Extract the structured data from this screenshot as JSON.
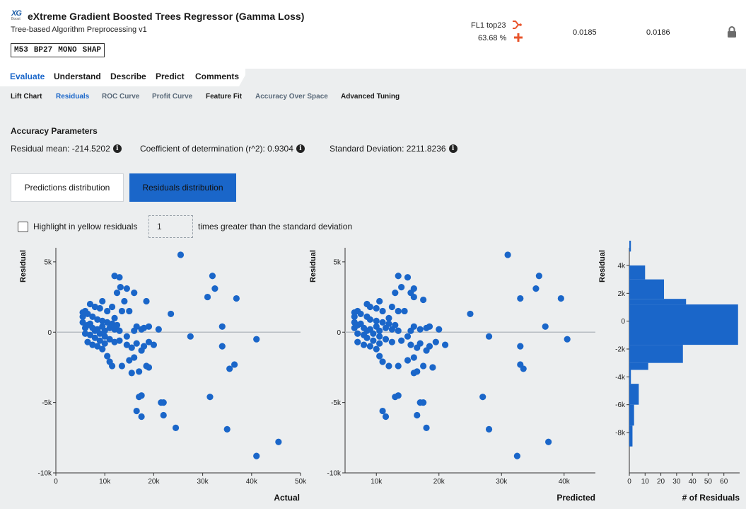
{
  "header": {
    "logo_text": "XG",
    "logo_sub": "Boost",
    "title": "eXtreme Gradient Boosted Trees Regressor (Gamma Loss)",
    "subtitle": "Tree-based Algorithm Preprocessing v1",
    "tags": [
      "M53",
      "BP27",
      "MONO",
      "SHAP"
    ],
    "feature_list": "FL1 top23",
    "sample_pct": "63.68 %",
    "metric_1": "0.0185",
    "metric_2": "0.0186",
    "icons": [
      "branch-icon",
      "plus-icon",
      "lock-icon"
    ],
    "accent_color": "#e8542b"
  },
  "tabs": [
    "Evaluate",
    "Understand",
    "Describe",
    "Predict",
    "Comments"
  ],
  "active_tab": "Evaluate",
  "subtabs": [
    "Lift Chart",
    "Residuals",
    "ROC Curve",
    "Profit Curve",
    "Feature Fit",
    "Accuracy Over Space",
    "Advanced Tuning"
  ],
  "active_subtab": "Residuals",
  "accuracy": {
    "title": "Accuracy Parameters",
    "residual_mean": "Residual mean: -214.5202",
    "r2": "Coefficient of determination (r^2): 0.9304",
    "std": "Standard Deviation: 2211.8236"
  },
  "buttons": {
    "predictions": "Predictions distribution",
    "residuals": "Residuals distribution"
  },
  "highlight": {
    "label": "Highlight in yellow residuals",
    "value": "1",
    "suffix": "times greater than the standard deviation",
    "checked": false
  },
  "colors": {
    "primary": "#1a66c9",
    "point": "#1a66c9"
  },
  "chart_data": [
    {
      "type": "scatter",
      "xlabel": "Actual",
      "ylabel": "Residual",
      "xlim": [
        0,
        50000
      ],
      "ylim": [
        -10000,
        6000
      ],
      "x_ticks": [
        "0",
        "10k",
        "20k",
        "30k",
        "40k",
        "50k"
      ],
      "y_ticks": [
        "5k",
        "0",
        "-5k",
        "-10k"
      ],
      "points": [
        [
          25500,
          5500
        ],
        [
          12000,
          4000
        ],
        [
          13000,
          3900
        ],
        [
          32000,
          4000
        ],
        [
          13200,
          3200
        ],
        [
          14500,
          3100
        ],
        [
          31000,
          2500
        ],
        [
          32500,
          3100
        ],
        [
          36900,
          2400
        ],
        [
          18500,
          2200
        ],
        [
          12500,
          2800
        ],
        [
          14000,
          2200
        ],
        [
          7000,
          2000
        ],
        [
          9000,
          1700
        ],
        [
          10500,
          1500
        ],
        [
          11500,
          1800
        ],
        [
          15000,
          1500
        ],
        [
          8000,
          1800
        ],
        [
          9500,
          2200
        ],
        [
          6000,
          1500
        ],
        [
          5500,
          1100
        ],
        [
          6500,
          1300
        ],
        [
          7500,
          1100
        ],
        [
          8500,
          900
        ],
        [
          9500,
          800
        ],
        [
          10500,
          700
        ],
        [
          11500,
          600
        ],
        [
          12500,
          500
        ],
        [
          5500,
          700
        ],
        [
          6500,
          500
        ],
        [
          7500,
          300
        ],
        [
          8500,
          200
        ],
        [
          9500,
          400
        ],
        [
          10000,
          100
        ],
        [
          11000,
          300
        ],
        [
          12000,
          200
        ],
        [
          13000,
          100
        ],
        [
          16000,
          100
        ],
        [
          16500,
          400
        ],
        [
          17500,
          200
        ],
        [
          18000,
          300
        ],
        [
          19000,
          400
        ],
        [
          21000,
          200
        ],
        [
          23500,
          1300
        ],
        [
          34000,
          400
        ],
        [
          6000,
          -100
        ],
        [
          7000,
          -200
        ],
        [
          8000,
          -400
        ],
        [
          9000,
          -100
        ],
        [
          10000,
          -300
        ],
        [
          11000,
          -500
        ],
        [
          12000,
          -700
        ],
        [
          13000,
          -600
        ],
        [
          14500,
          -900
        ],
        [
          15500,
          -1100
        ],
        [
          16500,
          -800
        ],
        [
          17500,
          -1300
        ],
        [
          18000,
          -1000
        ],
        [
          19000,
          -700
        ],
        [
          6500,
          -700
        ],
        [
          7500,
          -900
        ],
        [
          8500,
          -1000
        ],
        [
          9500,
          -1200
        ],
        [
          10500,
          -1700
        ],
        [
          11000,
          -2100
        ],
        [
          11500,
          -2400
        ],
        [
          13500,
          -2400
        ],
        [
          15000,
          -2000
        ],
        [
          16000,
          -1800
        ],
        [
          17000,
          -2800
        ],
        [
          18500,
          -2400
        ],
        [
          19000,
          -2500
        ],
        [
          15500,
          -2900
        ],
        [
          27500,
          -300
        ],
        [
          34000,
          -1000
        ],
        [
          36500,
          -2300
        ],
        [
          35500,
          -2600
        ],
        [
          41000,
          -500
        ],
        [
          17500,
          -4500
        ],
        [
          17000,
          -4600
        ],
        [
          21500,
          -5000
        ],
        [
          22000,
          -5000
        ],
        [
          16500,
          -5600
        ],
        [
          17500,
          -6000
        ],
        [
          22000,
          -5900
        ],
        [
          24500,
          -6800
        ],
        [
          31500,
          -4600
        ],
        [
          35000,
          -6900
        ],
        [
          41000,
          -8800
        ],
        [
          45500,
          -7800
        ],
        [
          14500,
          -300
        ],
        [
          12000,
          1000
        ],
        [
          13500,
          1500
        ],
        [
          16000,
          2800
        ],
        [
          5500,
          1400
        ],
        [
          6000,
          300
        ],
        [
          7000,
          600
        ],
        [
          8000,
          100
        ],
        [
          9000,
          -600
        ],
        [
          10000,
          -800
        ],
        [
          20000,
          -900
        ]
      ]
    },
    {
      "type": "scatter",
      "xlabel": "Predicted",
      "ylabel": "Residual",
      "xlim": [
        5000,
        45000
      ],
      "ylim": [
        -10000,
        6000
      ],
      "x_ticks": [
        "10k",
        "20k",
        "30k",
        "40k"
      ],
      "y_ticks": [
        "5k",
        "0",
        "-5k",
        "-10k"
      ],
      "points": [
        [
          31000,
          5500
        ],
        [
          13500,
          4000
        ],
        [
          15000,
          3900
        ],
        [
          36000,
          4000
        ],
        [
          14000,
          3200
        ],
        [
          16000,
          3100
        ],
        [
          33000,
          2400
        ],
        [
          35500,
          3100
        ],
        [
          39500,
          2400
        ],
        [
          17500,
          2300
        ],
        [
          13000,
          2800
        ],
        [
          16000,
          2500
        ],
        [
          8500,
          2000
        ],
        [
          10000,
          1700
        ],
        [
          11000,
          1500
        ],
        [
          12500,
          1800
        ],
        [
          14500,
          1500
        ],
        [
          9000,
          1800
        ],
        [
          10500,
          2200
        ],
        [
          7000,
          1500
        ],
        [
          6500,
          1100
        ],
        [
          7500,
          1300
        ],
        [
          8500,
          1100
        ],
        [
          9000,
          900
        ],
        [
          10000,
          800
        ],
        [
          11000,
          700
        ],
        [
          12000,
          600
        ],
        [
          13000,
          500
        ],
        [
          6500,
          700
        ],
        [
          7000,
          500
        ],
        [
          8000,
          300
        ],
        [
          9000,
          200
        ],
        [
          10000,
          400
        ],
        [
          10500,
          100
        ],
        [
          11500,
          300
        ],
        [
          12500,
          200
        ],
        [
          13500,
          100
        ],
        [
          15500,
          100
        ],
        [
          16000,
          400
        ],
        [
          17000,
          200
        ],
        [
          18000,
          300
        ],
        [
          18500,
          400
        ],
        [
          20000,
          200
        ],
        [
          25000,
          1300
        ],
        [
          37000,
          400
        ],
        [
          7000,
          -100
        ],
        [
          8000,
          -200
        ],
        [
          8500,
          -400
        ],
        [
          9500,
          -100
        ],
        [
          10500,
          -300
        ],
        [
          11500,
          -500
        ],
        [
          12500,
          -700
        ],
        [
          14000,
          -600
        ],
        [
          15500,
          -900
        ],
        [
          16500,
          -1100
        ],
        [
          17000,
          -800
        ],
        [
          18000,
          -1300
        ],
        [
          18500,
          -1000
        ],
        [
          19500,
          -700
        ],
        [
          7000,
          -700
        ],
        [
          8000,
          -900
        ],
        [
          9000,
          -1000
        ],
        [
          10000,
          -1200
        ],
        [
          10500,
          -1700
        ],
        [
          11000,
          -2100
        ],
        [
          12000,
          -2400
        ],
        [
          13500,
          -2400
        ],
        [
          15000,
          -2000
        ],
        [
          16000,
          -1800
        ],
        [
          16500,
          -2800
        ],
        [
          17500,
          -2400
        ],
        [
          19000,
          -2500
        ],
        [
          16000,
          -2900
        ],
        [
          28000,
          -300
        ],
        [
          33000,
          -1000
        ],
        [
          33000,
          -2300
        ],
        [
          33500,
          -2600
        ],
        [
          40500,
          -500
        ],
        [
          13500,
          -4500
        ],
        [
          13000,
          -4600
        ],
        [
          17000,
          -5000
        ],
        [
          17500,
          -5000
        ],
        [
          11000,
          -5600
        ],
        [
          11500,
          -6000
        ],
        [
          16500,
          -5900
        ],
        [
          18000,
          -6800
        ],
        [
          27000,
          -4600
        ],
        [
          28000,
          -6900
        ],
        [
          32500,
          -8800
        ],
        [
          37500,
          -7800
        ],
        [
          15000,
          -300
        ],
        [
          12000,
          1000
        ],
        [
          13500,
          1500
        ],
        [
          15500,
          2800
        ],
        [
          6500,
          1400
        ],
        [
          6500,
          300
        ],
        [
          7500,
          600
        ],
        [
          8500,
          100
        ],
        [
          9500,
          -600
        ],
        [
          10500,
          -800
        ],
        [
          21000,
          -900
        ]
      ]
    },
    {
      "type": "bar",
      "orientation": "horizontal",
      "xlabel": "# of Residuals",
      "ylabel": "Residual",
      "xlim": [
        0,
        70
      ],
      "x_ticks": [
        "0",
        "10",
        "20",
        "30",
        "40",
        "50",
        "60"
      ],
      "y_ticks": [
        "4k",
        "2k",
        "0",
        "-2k",
        "-4k",
        "-6k",
        "-8k"
      ],
      "bins": [
        {
          "from": 5000,
          "to": 6000,
          "count": 1
        },
        {
          "from": 4000,
          "to": 5000,
          "count": 0
        },
        {
          "from": 3000,
          "to": 4000,
          "count": 10
        },
        {
          "from": 1600,
          "to": 3000,
          "count": 22
        },
        {
          "from": 1200,
          "to": 1600,
          "count": 36
        },
        {
          "from": -1700,
          "to": 1200,
          "count": 69
        },
        {
          "from": -3000,
          "to": -1700,
          "count": 34
        },
        {
          "from": -3500,
          "to": -3000,
          "count": 12
        },
        {
          "from": -4500,
          "to": -3500,
          "count": 1
        },
        {
          "from": -6000,
          "to": -4500,
          "count": 6
        },
        {
          "from": -7500,
          "to": -6000,
          "count": 3
        },
        {
          "from": -9000,
          "to": -7500,
          "count": 2
        }
      ]
    }
  ]
}
